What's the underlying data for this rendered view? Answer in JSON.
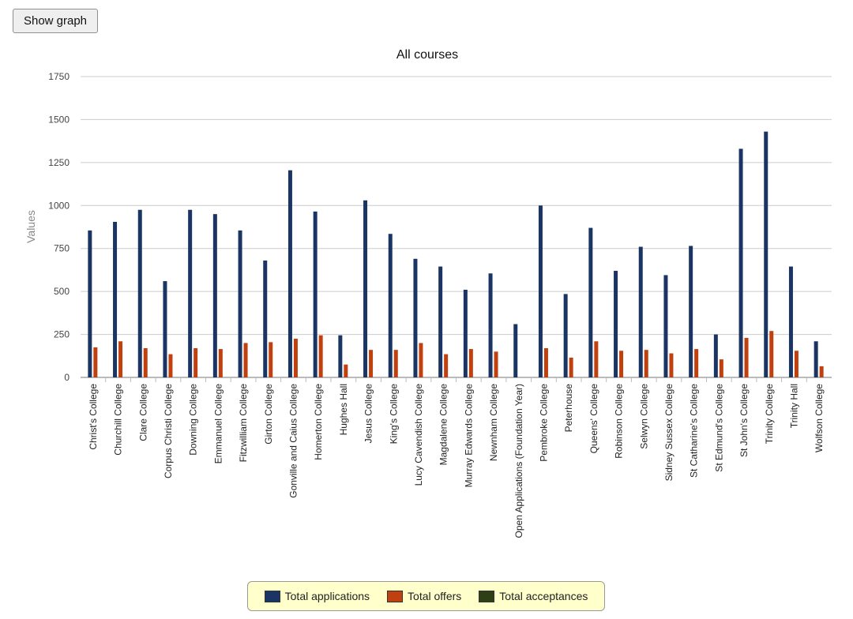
{
  "toolbar": {
    "show_graph_label": "Show graph"
  },
  "colors": {
    "applications": "#1a3564",
    "offers": "#c0410f",
    "acceptances": "#2d4015",
    "grid": "#cccccc",
    "axis": "#777777"
  },
  "legend": {
    "applications": "Total applications",
    "offers": "Total offers",
    "acceptances": "Total acceptances"
  },
  "chart_data": {
    "type": "bar",
    "title": "All courses",
    "xlabel": "",
    "ylabel": "Values",
    "ylim": [
      0,
      1750
    ],
    "yticks": [
      0,
      250,
      500,
      750,
      1000,
      1250,
      1500,
      1750
    ],
    "grid": true,
    "legend_position": "bottom",
    "categories": [
      "Christ's College",
      "Churchill College",
      "Clare College",
      "Corpus Christi College",
      "Downing College",
      "Emmanuel College",
      "Fitzwilliam College",
      "Girton College",
      "Gonville and Caius College",
      "Homerton College",
      "Hughes Hall",
      "Jesus College",
      "King's College",
      "Lucy Cavendish College",
      "Magdalene College",
      "Murray Edwards College",
      "Newnham College",
      "Open Applications (Foundation Year)",
      "Pembroke College",
      "Peterhouse",
      "Queens' College",
      "Robinson College",
      "Selwyn College",
      "Sidney Sussex College",
      "St Catharine's College",
      "St Edmund's College",
      "St John's College",
      "Trinity College",
      "Trinity Hall",
      "Wolfson College"
    ],
    "series": [
      {
        "name": "Total applications",
        "values": [
          855,
          905,
          975,
          560,
          975,
          950,
          855,
          680,
          1205,
          965,
          245,
          1030,
          835,
          690,
          645,
          510,
          605,
          310,
          1000,
          485,
          870,
          620,
          760,
          595,
          765,
          250,
          1330,
          1430,
          645,
          210
        ]
      },
      {
        "name": "Total offers",
        "values": [
          175,
          210,
          170,
          135,
          170,
          165,
          200,
          205,
          225,
          245,
          75,
          160,
          160,
          200,
          135,
          165,
          150,
          0,
          170,
          115,
          210,
          155,
          160,
          140,
          165,
          105,
          230,
          270,
          155,
          65
        ]
      },
      {
        "name": "Total acceptances",
        "values": [
          0,
          0,
          0,
          0,
          0,
          0,
          0,
          0,
          0,
          0,
          0,
          0,
          0,
          0,
          0,
          0,
          0,
          0,
          0,
          0,
          0,
          0,
          0,
          0,
          0,
          0,
          0,
          0,
          0,
          0
        ]
      }
    ]
  }
}
